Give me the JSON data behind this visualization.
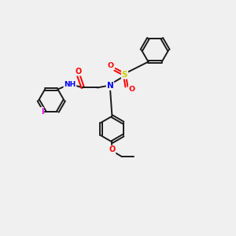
{
  "bg_color": "#f0f0f0",
  "bond_color": "#1a1a1a",
  "atom_colors": {
    "N": "#0000ff",
    "O": "#ff0000",
    "S": "#cccc00",
    "I": "#ee00ee",
    "H": "#008080",
    "C": "#1a1a1a"
  },
  "figsize": [
    3.0,
    3.0
  ],
  "dpi": 100,
  "bond_lw": 1.4,
  "ring_r": 0.55
}
